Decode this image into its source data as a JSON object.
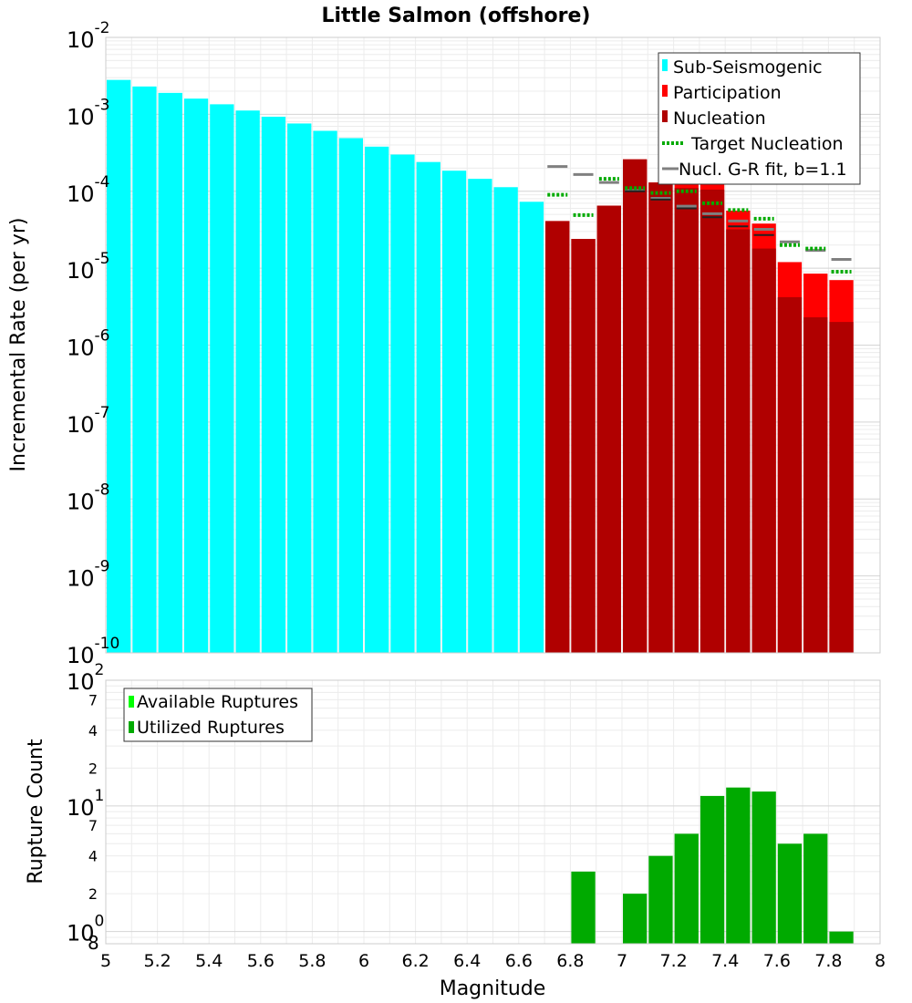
{
  "colors": {
    "sub_seismogenic": "#00ffff",
    "participation": "#ff0000",
    "nucleation": "#b00000",
    "target": "#00aa00",
    "gr_fit": "#808080",
    "available": "#00ff00",
    "utilized": "#00aa00",
    "overlap": "#f2b8b8"
  },
  "chart_data": [
    {
      "type": "bar",
      "title": "Little Salmon (offshore)",
      "xlabel": "",
      "ylabel": "Incremental Rate (per yr)",
      "yscale": "log",
      "xlim": [
        5,
        8
      ],
      "ylim": [
        1e-10,
        0.01
      ],
      "bin_width": 0.1,
      "yticks": [
        {
          "base": "10",
          "exp": "-10"
        },
        {
          "base": "10",
          "exp": "-9"
        },
        {
          "base": "10",
          "exp": "-8"
        },
        {
          "base": "10",
          "exp": "-7"
        },
        {
          "base": "10",
          "exp": "-6"
        },
        {
          "base": "10",
          "exp": "-5"
        },
        {
          "base": "10",
          "exp": "-4"
        },
        {
          "base": "10",
          "exp": "-3"
        },
        {
          "base": "10",
          "exp": "-2"
        }
      ],
      "legend": {
        "position": "top-right",
        "entries": [
          "Sub-Seismogenic",
          "Participation",
          "Nucleation",
          "Target Nucleation",
          "Nucl. G-R fit, b=1.1"
        ]
      },
      "sub_seismogenic": {
        "x": [
          5.05,
          5.15,
          5.25,
          5.35,
          5.45,
          5.55,
          5.65,
          5.75,
          5.85,
          5.95,
          6.05,
          6.15,
          6.25,
          6.35,
          6.45,
          6.55,
          6.65
        ],
        "values": [
          0.0028,
          0.0023,
          0.0019,
          0.0016,
          0.00135,
          0.00112,
          0.00093,
          0.00076,
          0.00061,
          0.00049,
          0.00038,
          0.0003,
          0.00024,
          0.000185,
          0.000145,
          0.000113,
          7.3e-05
        ]
      },
      "participation": {
        "x": [
          6.75,
          6.85,
          6.95,
          7.05,
          7.15,
          7.25,
          7.35,
          7.45,
          7.55,
          7.65,
          7.75,
          7.85
        ],
        "values": [
          4.1e-05,
          2.4e-05,
          6.5e-05,
          0.00026,
          0.00013,
          0.00024,
          0.000125,
          5.6e-05,
          3.8e-05,
          1.2e-05,
          8.5e-06,
          7e-06
        ]
      },
      "nucleation": {
        "x": [
          6.75,
          6.85,
          6.95,
          7.05,
          7.15,
          7.25,
          7.35,
          7.45,
          7.55,
          7.65,
          7.75,
          7.85
        ],
        "values": [
          4.1e-05,
          2.4e-05,
          6.5e-05,
          0.00026,
          0.00013,
          0.00011,
          0.000105,
          3.2e-05,
          1.8e-05,
          4.2e-06,
          2.3e-06,
          2e-06
        ]
      },
      "target_nucleation": {
        "x": [
          6.75,
          6.85,
          6.95,
          7.05,
          7.15,
          7.25,
          7.35,
          7.45,
          7.55,
          7.65,
          7.75,
          7.85
        ],
        "values": [
          9e-05,
          4.9e-05,
          0.000145,
          0.00011,
          9.5e-05,
          0.0001,
          7e-05,
          5.7e-05,
          4.4e-05,
          2e-05,
          1.8e-05,
          9e-06
        ]
      },
      "gr_fit": {
        "x": [
          6.75,
          6.85,
          6.95,
          7.05,
          7.15,
          7.25,
          7.35,
          7.45,
          7.55,
          7.65,
          7.75,
          7.85
        ],
        "values": [
          0.00021,
          0.000165,
          0.00013,
          0.000102,
          8.1e-05,
          6.4e-05,
          5.1e-05,
          4.1e-05,
          3.2e-05,
          2.2e-05,
          1.7e-05,
          1.3e-05
        ]
      },
      "nucleation_ticks": {
        "x": [
          7.05,
          7.15,
          7.25,
          7.35,
          7.45,
          7.55
        ],
        "values": [
          0.0001,
          7.8e-05,
          6e-05,
          4.6e-05,
          3.5e-05,
          2.7e-05
        ]
      }
    },
    {
      "type": "bar",
      "title": "",
      "xlabel": "Magnitude",
      "ylabel": "Rupture Count",
      "yscale": "log",
      "xlim": [
        5,
        8
      ],
      "ylim": [
        0.8,
        100
      ],
      "xticks": [
        "5",
        "5.2",
        "5.4",
        "5.6",
        "5.8",
        "6",
        "6.2",
        "6.4",
        "6.6",
        "6.8",
        "7",
        "7.2",
        "7.4",
        "7.6",
        "7.8",
        "8"
      ],
      "ytick_labels": [
        {
          "label": "10",
          "sup": "2"
        },
        {
          "label": "7",
          "sup": ""
        },
        {
          "label": "4",
          "sup": ""
        },
        {
          "label": "2",
          "sup": ""
        },
        {
          "label": "10",
          "sup": "1"
        },
        {
          "label": "7",
          "sup": ""
        },
        {
          "label": "4",
          "sup": ""
        },
        {
          "label": "2",
          "sup": ""
        },
        {
          "label": "10",
          "sup": "0"
        },
        {
          "label": "8",
          "sup": ""
        }
      ],
      "legend": {
        "position": "top-left",
        "entries": [
          "Available Ruptures",
          "Utilized Ruptures"
        ]
      },
      "utilized": {
        "x": [
          6.85,
          7.05,
          7.15,
          7.25,
          7.35,
          7.45,
          7.55,
          7.65,
          7.75,
          7.85
        ],
        "values": [
          3,
          2,
          4,
          6,
          12,
          14,
          13,
          5,
          6,
          1
        ]
      }
    }
  ]
}
